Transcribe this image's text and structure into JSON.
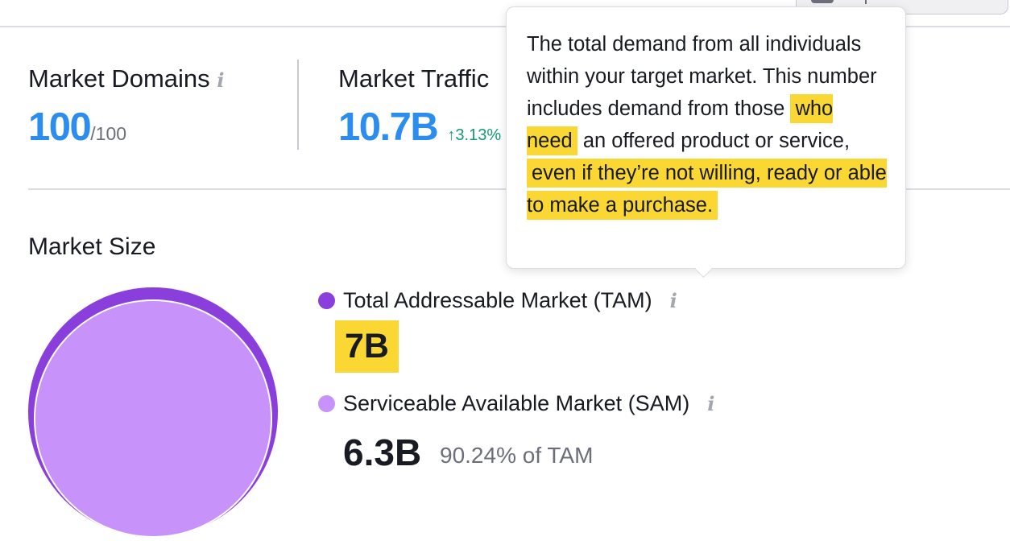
{
  "metrics": [
    {
      "title": "Market Domains",
      "value": "100",
      "suffix": "/100"
    },
    {
      "title": "Market Traffic",
      "value": "10.7B",
      "delta": "↑3.13%"
    }
  ],
  "market_size": {
    "title": "Market Size",
    "tam": {
      "label": "Total Addressable Market (TAM)",
      "value": "7B",
      "color": "#8a3fdc"
    },
    "sam": {
      "label": "Serviceable Available Market (SAM)",
      "value": "6.3B",
      "pct_of_tam": "90.24% of TAM",
      "color": "#c792fa"
    }
  },
  "tooltip": {
    "part1": "The total demand from all individuals within your target market. This number includes demand from those ",
    "hl1": "who need",
    "part2": " an offered product or service, ",
    "hl2": "even if they’re not willing, ready or able to make a purchase."
  },
  "info_glyph": "i"
}
